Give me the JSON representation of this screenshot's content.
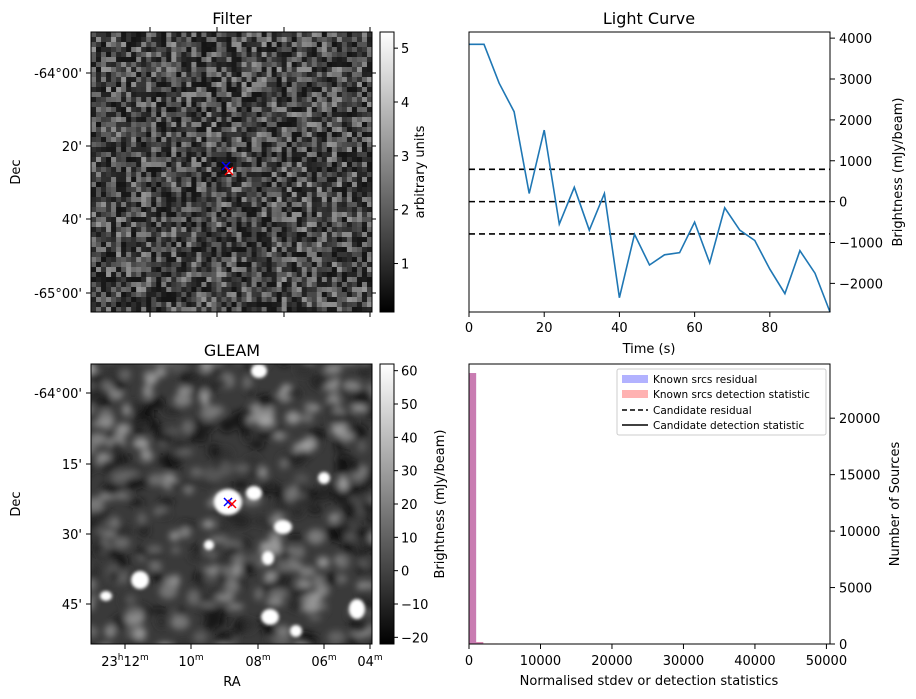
{
  "chart_data": [
    {
      "type": "heatmap",
      "title": "Filter",
      "ylabel": "Dec",
      "colorbar_label": "arbitrary units",
      "colormap": "grayscale",
      "y_ticks": [
        "-64°00'",
        "20'",
        "40'",
        "-65°00'"
      ],
      "colorbar_ticks": [
        "1",
        "2",
        "3",
        "4",
        "5"
      ],
      "colorbar_range": [
        0.1,
        5.3
      ],
      "markers": [
        {
          "symbol": "x",
          "color": "#0000ff",
          "label": "candidate position"
        },
        {
          "symbol": "x",
          "color": "#ff0000",
          "label": "candidate position"
        }
      ]
    },
    {
      "type": "line",
      "title": "Light Curve",
      "xlabel": "Time (s)",
      "ylabel": "Brightness (mJy/beam)",
      "xlim": [
        0,
        96
      ],
      "ylim": [
        -2700,
        4150
      ],
      "x_ticks": [
        "0",
        "20",
        "40",
        "60",
        "80"
      ],
      "y_ticks": [
        "4000",
        "3000",
        "2000",
        "1000",
        "0",
        "−1000",
        "−2000"
      ],
      "series": [
        {
          "color": "#1f77b4",
          "x": [
            0,
            4,
            8,
            12,
            16,
            20,
            24,
            28,
            32,
            36,
            40,
            44,
            48,
            52,
            56,
            60,
            64,
            68,
            72,
            76,
            80,
            84,
            88,
            92,
            96
          ],
          "y": [
            3850,
            3850,
            2900,
            2200,
            200,
            1750,
            -550,
            350,
            -700,
            200,
            -2350,
            -800,
            -1550,
            -1300,
            -1250,
            -500,
            -1500,
            -150,
            -700,
            -950,
            -1650,
            -2250,
            -1200,
            -1750,
            -2700
          ]
        }
      ],
      "hlines": [
        {
          "y": 790,
          "style": "dashed",
          "color": "#000000"
        },
        {
          "y": 0,
          "style": "dashed",
          "color": "#000000"
        },
        {
          "y": -790,
          "style": "dashed",
          "color": "#000000"
        }
      ]
    },
    {
      "type": "heatmap",
      "title": "GLEAM",
      "xlabel": "RA",
      "ylabel": "Dec",
      "colorbar_label": "Brightness (mJy/beam)",
      "colormap": "grayscale",
      "x_ticks": [
        "23h12m",
        "10m",
        "08m",
        "06m",
        "04m"
      ],
      "y_ticks": [
        "-64°00'",
        "15'",
        "30'",
        "45'"
      ],
      "colorbar_ticks": [
        "60",
        "50",
        "40",
        "30",
        "20",
        "10",
        "0",
        "−10",
        "−20"
      ],
      "colorbar_range": [
        -22,
        62
      ],
      "markers": [
        {
          "symbol": "x",
          "color": "#0000ff",
          "label": "candidate position"
        },
        {
          "symbol": "x",
          "color": "#ff0000",
          "label": "candidate position"
        }
      ]
    },
    {
      "type": "bar",
      "subtype": "histogram",
      "xlabel": "Normalised stdev or detection statistics",
      "ylabel": "Number of Sources",
      "xlim": [
        0,
        50500
      ],
      "ylim": [
        0,
        24800
      ],
      "x_ticks": [
        "0",
        "10000",
        "20000",
        "30000",
        "40000",
        "50000"
      ],
      "y_ticks": [
        "0",
        "5000",
        "10000",
        "15000",
        "20000"
      ],
      "legend_position": "top-right",
      "series": [
        {
          "name": "Known srcs residual",
          "color": "#0000ff",
          "bins": [
            [
              0,
              1000,
              24000
            ],
            [
              1000,
              2000,
              150
            ],
            [
              2000,
              4000,
              40
            ],
            [
              4000,
              8000,
              10
            ],
            [
              8000,
              50000,
              3
            ]
          ]
        },
        {
          "name": "Known srcs detection statistic",
          "color": "#ff0000",
          "bins": [
            [
              0,
              1000,
              24000
            ],
            [
              1000,
              2000,
              180
            ],
            [
              2000,
              4000,
              50
            ],
            [
              4000,
              8000,
              12
            ],
            [
              8000,
              50000,
              4
            ]
          ]
        }
      ],
      "lines": [
        {
          "name": "Candidate residual",
          "style": "dashed",
          "color": "#000000"
        },
        {
          "name": "Candidate detection statistic",
          "style": "solid",
          "color": "#000000"
        }
      ]
    }
  ]
}
